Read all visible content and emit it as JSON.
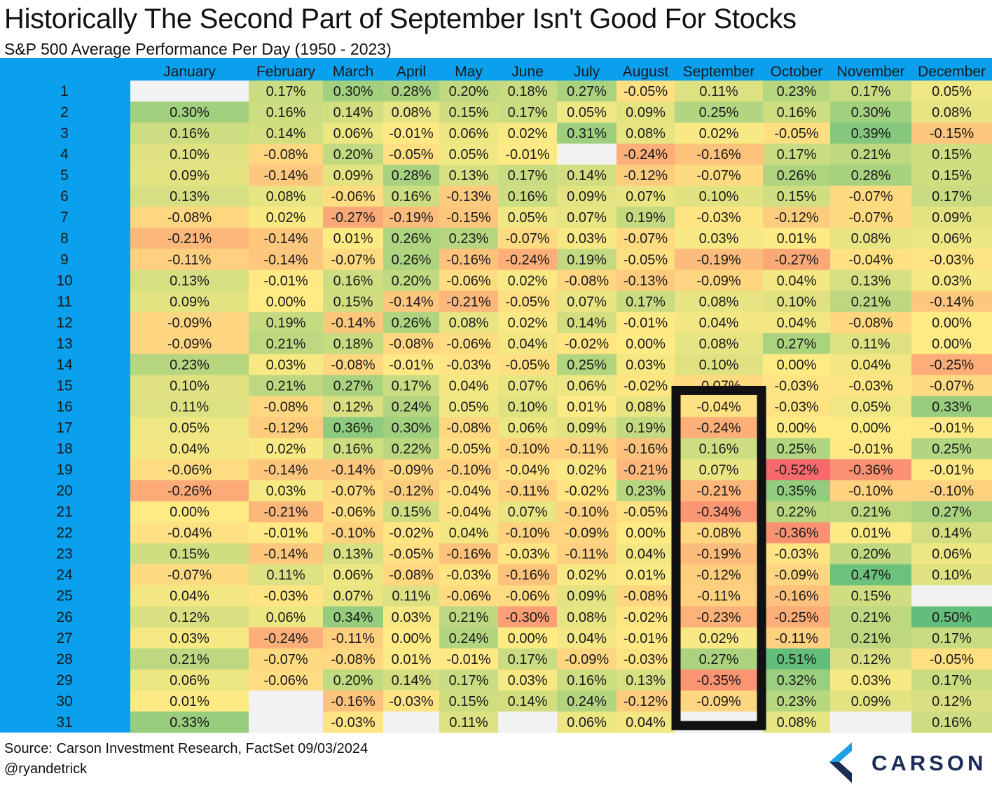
{
  "chart_data": {
    "type": "heatmap",
    "title": "Historically The Second Part of September Isn't Good For Stocks",
    "subtitle": "S&P 500 Average Performance Per Day (1950 - 2023)",
    "columns": [
      "January",
      "February",
      "March",
      "April",
      "May",
      "June",
      "July",
      "August",
      "September",
      "October",
      "November",
      "December"
    ],
    "rows": [
      "1",
      "2",
      "3",
      "4",
      "5",
      "6",
      "7",
      "8",
      "9",
      "10",
      "11",
      "12",
      "13",
      "14",
      "15",
      "16",
      "17",
      "18",
      "19",
      "20",
      "21",
      "22",
      "23",
      "24",
      "25",
      "26",
      "27",
      "28",
      "29",
      "30",
      "31"
    ],
    "value_unit": "%",
    "values": [
      [
        null,
        0.17,
        0.3,
        0.28,
        0.2,
        0.18,
        0.27,
        -0.05,
        0.11,
        0.23,
        0.17,
        0.05
      ],
      [
        0.3,
        0.16,
        0.14,
        0.08,
        0.15,
        0.17,
        0.05,
        0.09,
        0.25,
        0.16,
        0.3,
        0.08
      ],
      [
        0.16,
        0.14,
        0.06,
        -0.01,
        0.06,
        0.02,
        0.31,
        0.08,
        0.02,
        -0.05,
        0.39,
        -0.15
      ],
      [
        0.1,
        -0.08,
        0.2,
        -0.05,
        0.05,
        -0.01,
        null,
        -0.24,
        -0.16,
        0.17,
        0.21,
        0.15
      ],
      [
        0.09,
        -0.14,
        0.09,
        0.28,
        0.13,
        0.17,
        0.14,
        -0.12,
        -0.07,
        0.26,
        0.28,
        0.15
      ],
      [
        0.13,
        0.08,
        -0.06,
        0.16,
        -0.13,
        0.16,
        0.09,
        0.07,
        0.1,
        0.15,
        -0.07,
        0.17
      ],
      [
        -0.08,
        0.02,
        -0.27,
        -0.19,
        -0.15,
        0.05,
        0.07,
        0.19,
        -0.03,
        -0.12,
        -0.07,
        0.09
      ],
      [
        -0.21,
        -0.14,
        0.01,
        0.26,
        0.23,
        -0.07,
        0.03,
        -0.07,
        0.03,
        0.01,
        0.08,
        0.06
      ],
      [
        -0.11,
        -0.14,
        -0.07,
        0.26,
        -0.16,
        -0.24,
        0.19,
        -0.05,
        -0.19,
        -0.27,
        -0.04,
        -0.03
      ],
      [
        0.13,
        -0.01,
        0.16,
        0.2,
        -0.06,
        0.02,
        -0.08,
        -0.13,
        -0.09,
        0.04,
        0.13,
        0.03
      ],
      [
        0.09,
        0.0,
        0.15,
        -0.14,
        -0.21,
        -0.05,
        0.07,
        0.17,
        0.08,
        0.1,
        0.21,
        -0.14
      ],
      [
        -0.09,
        0.19,
        -0.14,
        0.26,
        0.08,
        0.02,
        0.14,
        -0.01,
        0.04,
        0.04,
        -0.08,
        0.0
      ],
      [
        -0.09,
        0.21,
        0.18,
        -0.08,
        -0.06,
        0.04,
        -0.02,
        0.0,
        0.08,
        0.27,
        0.11,
        0.0
      ],
      [
        0.23,
        0.03,
        -0.08,
        -0.01,
        -0.03,
        -0.05,
        0.25,
        0.03,
        0.1,
        0.0,
        0.04,
        -0.25
      ],
      [
        0.1,
        0.21,
        0.27,
        0.17,
        0.04,
        0.07,
        0.06,
        -0.02,
        -0.07,
        -0.03,
        -0.03,
        -0.07
      ],
      [
        0.11,
        -0.08,
        0.12,
        0.24,
        0.05,
        0.1,
        0.01,
        0.08,
        -0.04,
        -0.03,
        0.05,
        0.33
      ],
      [
        0.05,
        -0.12,
        0.36,
        0.3,
        -0.08,
        0.06,
        0.09,
        0.19,
        -0.24,
        0.0,
        0.0,
        -0.01
      ],
      [
        0.04,
        0.02,
        0.16,
        0.22,
        -0.05,
        -0.1,
        -0.11,
        -0.16,
        0.16,
        0.25,
        -0.01,
        0.25
      ],
      [
        -0.06,
        -0.14,
        -0.14,
        -0.09,
        -0.1,
        -0.04,
        0.02,
        -0.21,
        0.07,
        -0.52,
        -0.36,
        -0.01
      ],
      [
        -0.26,
        0.03,
        -0.07,
        -0.12,
        -0.04,
        -0.11,
        -0.02,
        0.23,
        -0.21,
        0.35,
        -0.1,
        -0.1
      ],
      [
        0.0,
        -0.21,
        -0.06,
        0.15,
        -0.04,
        0.07,
        -0.1,
        -0.05,
        -0.34,
        0.22,
        0.21,
        0.27
      ],
      [
        -0.04,
        -0.01,
        -0.1,
        -0.02,
        0.04,
        -0.1,
        -0.09,
        0.0,
        -0.08,
        -0.36,
        0.01,
        0.14
      ],
      [
        0.15,
        -0.14,
        0.13,
        -0.05,
        -0.16,
        -0.03,
        -0.11,
        0.04,
        -0.19,
        -0.03,
        0.2,
        0.06
      ],
      [
        -0.07,
        0.11,
        0.06,
        -0.08,
        -0.03,
        -0.16,
        0.02,
        0.01,
        -0.12,
        -0.09,
        0.47,
        0.1
      ],
      [
        0.04,
        -0.03,
        0.07,
        0.11,
        -0.06,
        -0.06,
        0.09,
        -0.08,
        -0.11,
        -0.16,
        0.15,
        null
      ],
      [
        0.12,
        0.06,
        0.34,
        0.03,
        0.21,
        -0.3,
        0.08,
        -0.02,
        -0.23,
        -0.25,
        0.21,
        0.5
      ],
      [
        0.03,
        -0.24,
        -0.11,
        0.0,
        0.24,
        0.0,
        0.04,
        -0.01,
        0.02,
        -0.11,
        0.21,
        0.17
      ],
      [
        0.21,
        -0.07,
        -0.08,
        0.01,
        -0.01,
        0.17,
        -0.09,
        -0.03,
        0.27,
        0.51,
        0.12,
        -0.05
      ],
      [
        0.06,
        -0.06,
        0.2,
        0.14,
        0.17,
        0.03,
        0.16,
        0.13,
        -0.35,
        0.32,
        0.03,
        0.17
      ],
      [
        0.01,
        null,
        -0.16,
        -0.03,
        0.15,
        0.14,
        0.24,
        -0.12,
        -0.09,
        0.23,
        0.09,
        0.12
      ],
      [
        0.33,
        null,
        -0.03,
        null,
        0.11,
        null,
        0.06,
        0.04,
        null,
        0.08,
        null,
        0.16
      ]
    ],
    "color_scale": {
      "negative": "#f8696b",
      "zero": "#ffeb84",
      "positive": "#63be7b",
      "empty": "#f2f2f2"
    },
    "header_color": "#0aa0ee",
    "highlight": {
      "column": "September",
      "from_row": "16",
      "to_row": "31"
    }
  },
  "footer": {
    "source": "Source: Carson Investment Research, FactSet 09/03/2024",
    "handle": "@ryandetrick"
  },
  "logo": {
    "name": "CARSON",
    "icon": "carson-chevron-icon"
  }
}
